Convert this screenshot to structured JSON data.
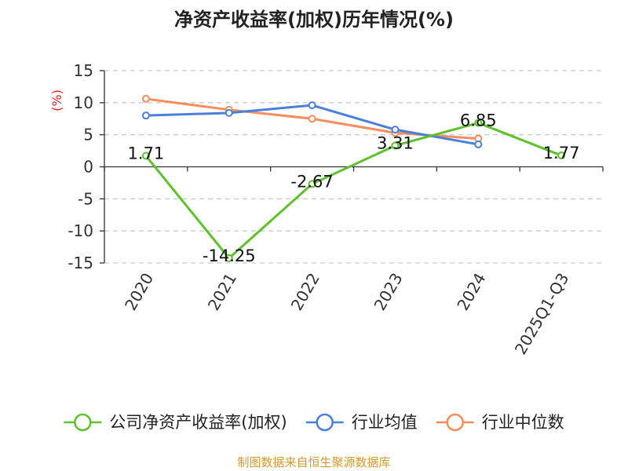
{
  "chart_data": {
    "type": "line",
    "title": "净资产收益率(加权)历年情况(%)",
    "ylabel": "(%)",
    "ylim": [
      -15,
      15
    ],
    "yticks": [
      15,
      10,
      5,
      0,
      -5,
      -10,
      -15
    ],
    "categories": [
      "2020",
      "2021",
      "2022",
      "2023",
      "2024",
      "2025Q1-Q3"
    ],
    "series": [
      {
        "name": "公司净资产收益率(加权)",
        "color": "#5ec12d",
        "values": [
          1.71,
          -14.25,
          -2.67,
          3.31,
          6.85,
          1.77
        ],
        "labels": [
          "1.71",
          "-14.25",
          "-2.67",
          "3.31",
          "6.85",
          "1.77"
        ]
      },
      {
        "name": "行业均值",
        "color": "#4a7fdc",
        "values": [
          8.0,
          8.4,
          9.6,
          5.8,
          3.5,
          null
        ]
      },
      {
        "name": "行业中位数",
        "color": "#f68d5c",
        "values": [
          10.6,
          8.9,
          7.5,
          5.3,
          4.4,
          null
        ]
      }
    ],
    "legend_position": "bottom",
    "grid": true
  },
  "source": "制图数据来自恒生聚源数据库",
  "colors": {
    "axis": "#333333",
    "grid": "#cccccc",
    "ylabel": "#e02020",
    "source": "#d29a2c"
  }
}
